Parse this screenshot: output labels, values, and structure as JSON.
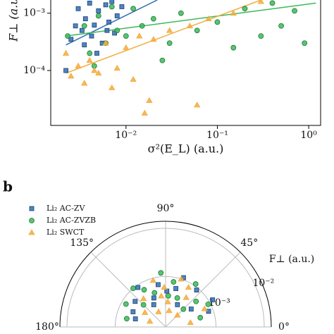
{
  "chart_data": [
    {
      "type": "scatter",
      "x_label": "σ²(E_L) (a.u.)",
      "y_label": "F⊥ (a.u.)",
      "log_x": true,
      "log_y": true,
      "xlim": [
        0.0015,
        1.35
      ],
      "ylim": [
        1.1e-05,
        0.0017
      ],
      "xticks": [
        {
          "value": 0.01,
          "label": "10⁻²"
        },
        {
          "value": 0.1,
          "label": "10⁻¹"
        },
        {
          "value": 1,
          "label": "10⁰"
        }
      ],
      "yticks": [
        {
          "value": 0.0001,
          "label": "10⁻⁴"
        },
        {
          "value": 0.001,
          "label": "10⁻³"
        }
      ],
      "series": [
        {
          "name": "Li₂ AC-ZV",
          "color": "#2f6eb5",
          "marker": "square",
          "x": [
            0.0022,
            0.0025,
            0.003,
            0.0033,
            0.0036,
            0.004,
            0.0042,
            0.0045,
            0.005,
            0.0055,
            0.006,
            0.0065,
            0.007,
            0.0075,
            0.008,
            0.009,
            0.0035,
            0.0028,
            0.0048,
            0.0062
          ],
          "y": [
            0.0001,
            0.00035,
            0.0012,
            0.0005,
            0.0008,
            0.0015,
            0.0004,
            0.00062,
            0.0011,
            0.0003,
            0.0014,
            0.0007,
            0.0016,
            0.00045,
            0.0009,
            0.0013,
            0.00028,
            0.0006,
            0.0002,
            0.0005
          ]
        },
        {
          "name": "Li₂ AC-ZVZB",
          "color": "#3cb95a",
          "marker": "circle",
          "x": [
            0.0023,
            0.0035,
            0.004,
            0.005,
            0.006,
            0.008,
            0.01,
            0.012,
            0.015,
            0.02,
            0.03,
            0.04,
            0.06,
            0.1,
            0.15,
            0.2,
            0.3,
            0.4,
            0.5,
            0.7,
            0.9,
            0.0045,
            0.007,
            0.025
          ],
          "y": [
            0.0004,
            0.0006,
            0.0002,
            0.0009,
            0.0003,
            0.0005,
            0.0004,
            0.0012,
            0.0006,
            0.0008,
            0.0003,
            0.001,
            0.0005,
            0.0007,
            0.00025,
            0.0012,
            0.0004,
            0.0015,
            0.0006,
            0.0011,
            0.0003,
            0.00012,
            0.0013,
            0.00015
          ]
        },
        {
          "name": "Li₂ SWCT",
          "color": "#f2ac3e",
          "marker": "triangle",
          "x": [
            0.0022,
            0.0025,
            0.003,
            0.0035,
            0.004,
            0.005,
            0.006,
            0.007,
            0.008,
            0.01,
            0.012,
            0.014,
            0.016,
            0.02,
            0.03,
            0.05,
            0.06,
            0.08,
            0.15,
            0.3,
            0.018,
            0.0045
          ],
          "y": [
            0.0002,
            8e-05,
            0.00012,
            6e-05,
            0.00015,
            9e-05,
            0.0003,
            5e-05,
            0.00011,
            0.00025,
            7e-05,
            0.0004,
            1.8e-05,
            0.00035,
            0.0005,
            0.0006,
            2.5e-05,
            0.0008,
            0.001,
            0.0016,
            3e-05,
            0.0001
          ]
        }
      ],
      "fits": [
        {
          "color": "#2f6eb5",
          "x": [
            0.0022,
            0.022
          ],
          "y": [
            0.00028,
            0.0017
          ]
        },
        {
          "color": "#3cb95a",
          "x": [
            0.0022,
            1.2
          ],
          "y": [
            0.0004,
            0.0015
          ]
        },
        {
          "color": "#f2ac3e",
          "x": [
            0.0022,
            0.3
          ],
          "y": [
            9e-05,
            0.0017
          ]
        }
      ]
    },
    {
      "type": "polar_scatter",
      "panel_label": "b",
      "r_label": "F⊥ (a.u.)",
      "log_r": true,
      "thetalim": [
        0,
        180
      ],
      "rlim": [
        9e-05,
        0.014
      ],
      "thetaticks": [
        {
          "value": 0,
          "label": "0°"
        },
        {
          "value": 45,
          "label": "45°"
        },
        {
          "value": 90,
          "label": "90°"
        },
        {
          "value": 135,
          "label": "135°"
        },
        {
          "value": 180,
          "label": "180°"
        }
      ],
      "rticks": [
        {
          "value": 0.001,
          "label": "10⁻³"
        },
        {
          "value": 0.01,
          "label": "10⁻²"
        }
      ],
      "series": [
        {
          "name": "Li₂ AC-ZV",
          "color": "#2f6eb5",
          "marker": "square",
          "theta": [
            20,
            35,
            50,
            62,
            75,
            88,
            100,
            112,
            125,
            140,
            155,
            165,
            30,
            70,
            118
          ],
          "r": [
            0.0008,
            0.0004,
            0.0009,
            0.0003,
            0.0006,
            0.0005,
            0.0007,
            0.0004,
            0.0009,
            0.0006,
            0.0005,
            0.0004,
            0.0012,
            0.0011,
            0.0003
          ]
        },
        {
          "name": "Li₂ AC-ZVZB",
          "color": "#3cb95a",
          "marker": "circle",
          "theta": [
            15,
            28,
            40,
            55,
            68,
            80,
            95,
            108,
            120,
            135,
            150,
            168,
            45,
            85,
            130
          ],
          "r": [
            0.0005,
            0.0009,
            0.0006,
            0.0011,
            0.0004,
            0.0008,
            0.0012,
            0.0005,
            0.0007,
            0.0004,
            0.0008,
            0.0006,
            0.0003,
            0.0004,
            0.001
          ]
        },
        {
          "name": "Li₂ SWCT",
          "color": "#f2ac3e",
          "marker": "triangle",
          "theta": [
            10,
            25,
            45,
            60,
            72,
            85,
            92,
            105,
            115,
            128,
            145,
            160,
            55,
            98,
            78
          ],
          "r": [
            0.0003,
            0.0007,
            0.0002,
            0.0008,
            0.001,
            0.0003,
            0.0006,
            0.0009,
            0.0002,
            0.0005,
            0.0003,
            0.0002,
            0.0005,
            0.0004,
            0.0002
          ]
        }
      ]
    }
  ]
}
